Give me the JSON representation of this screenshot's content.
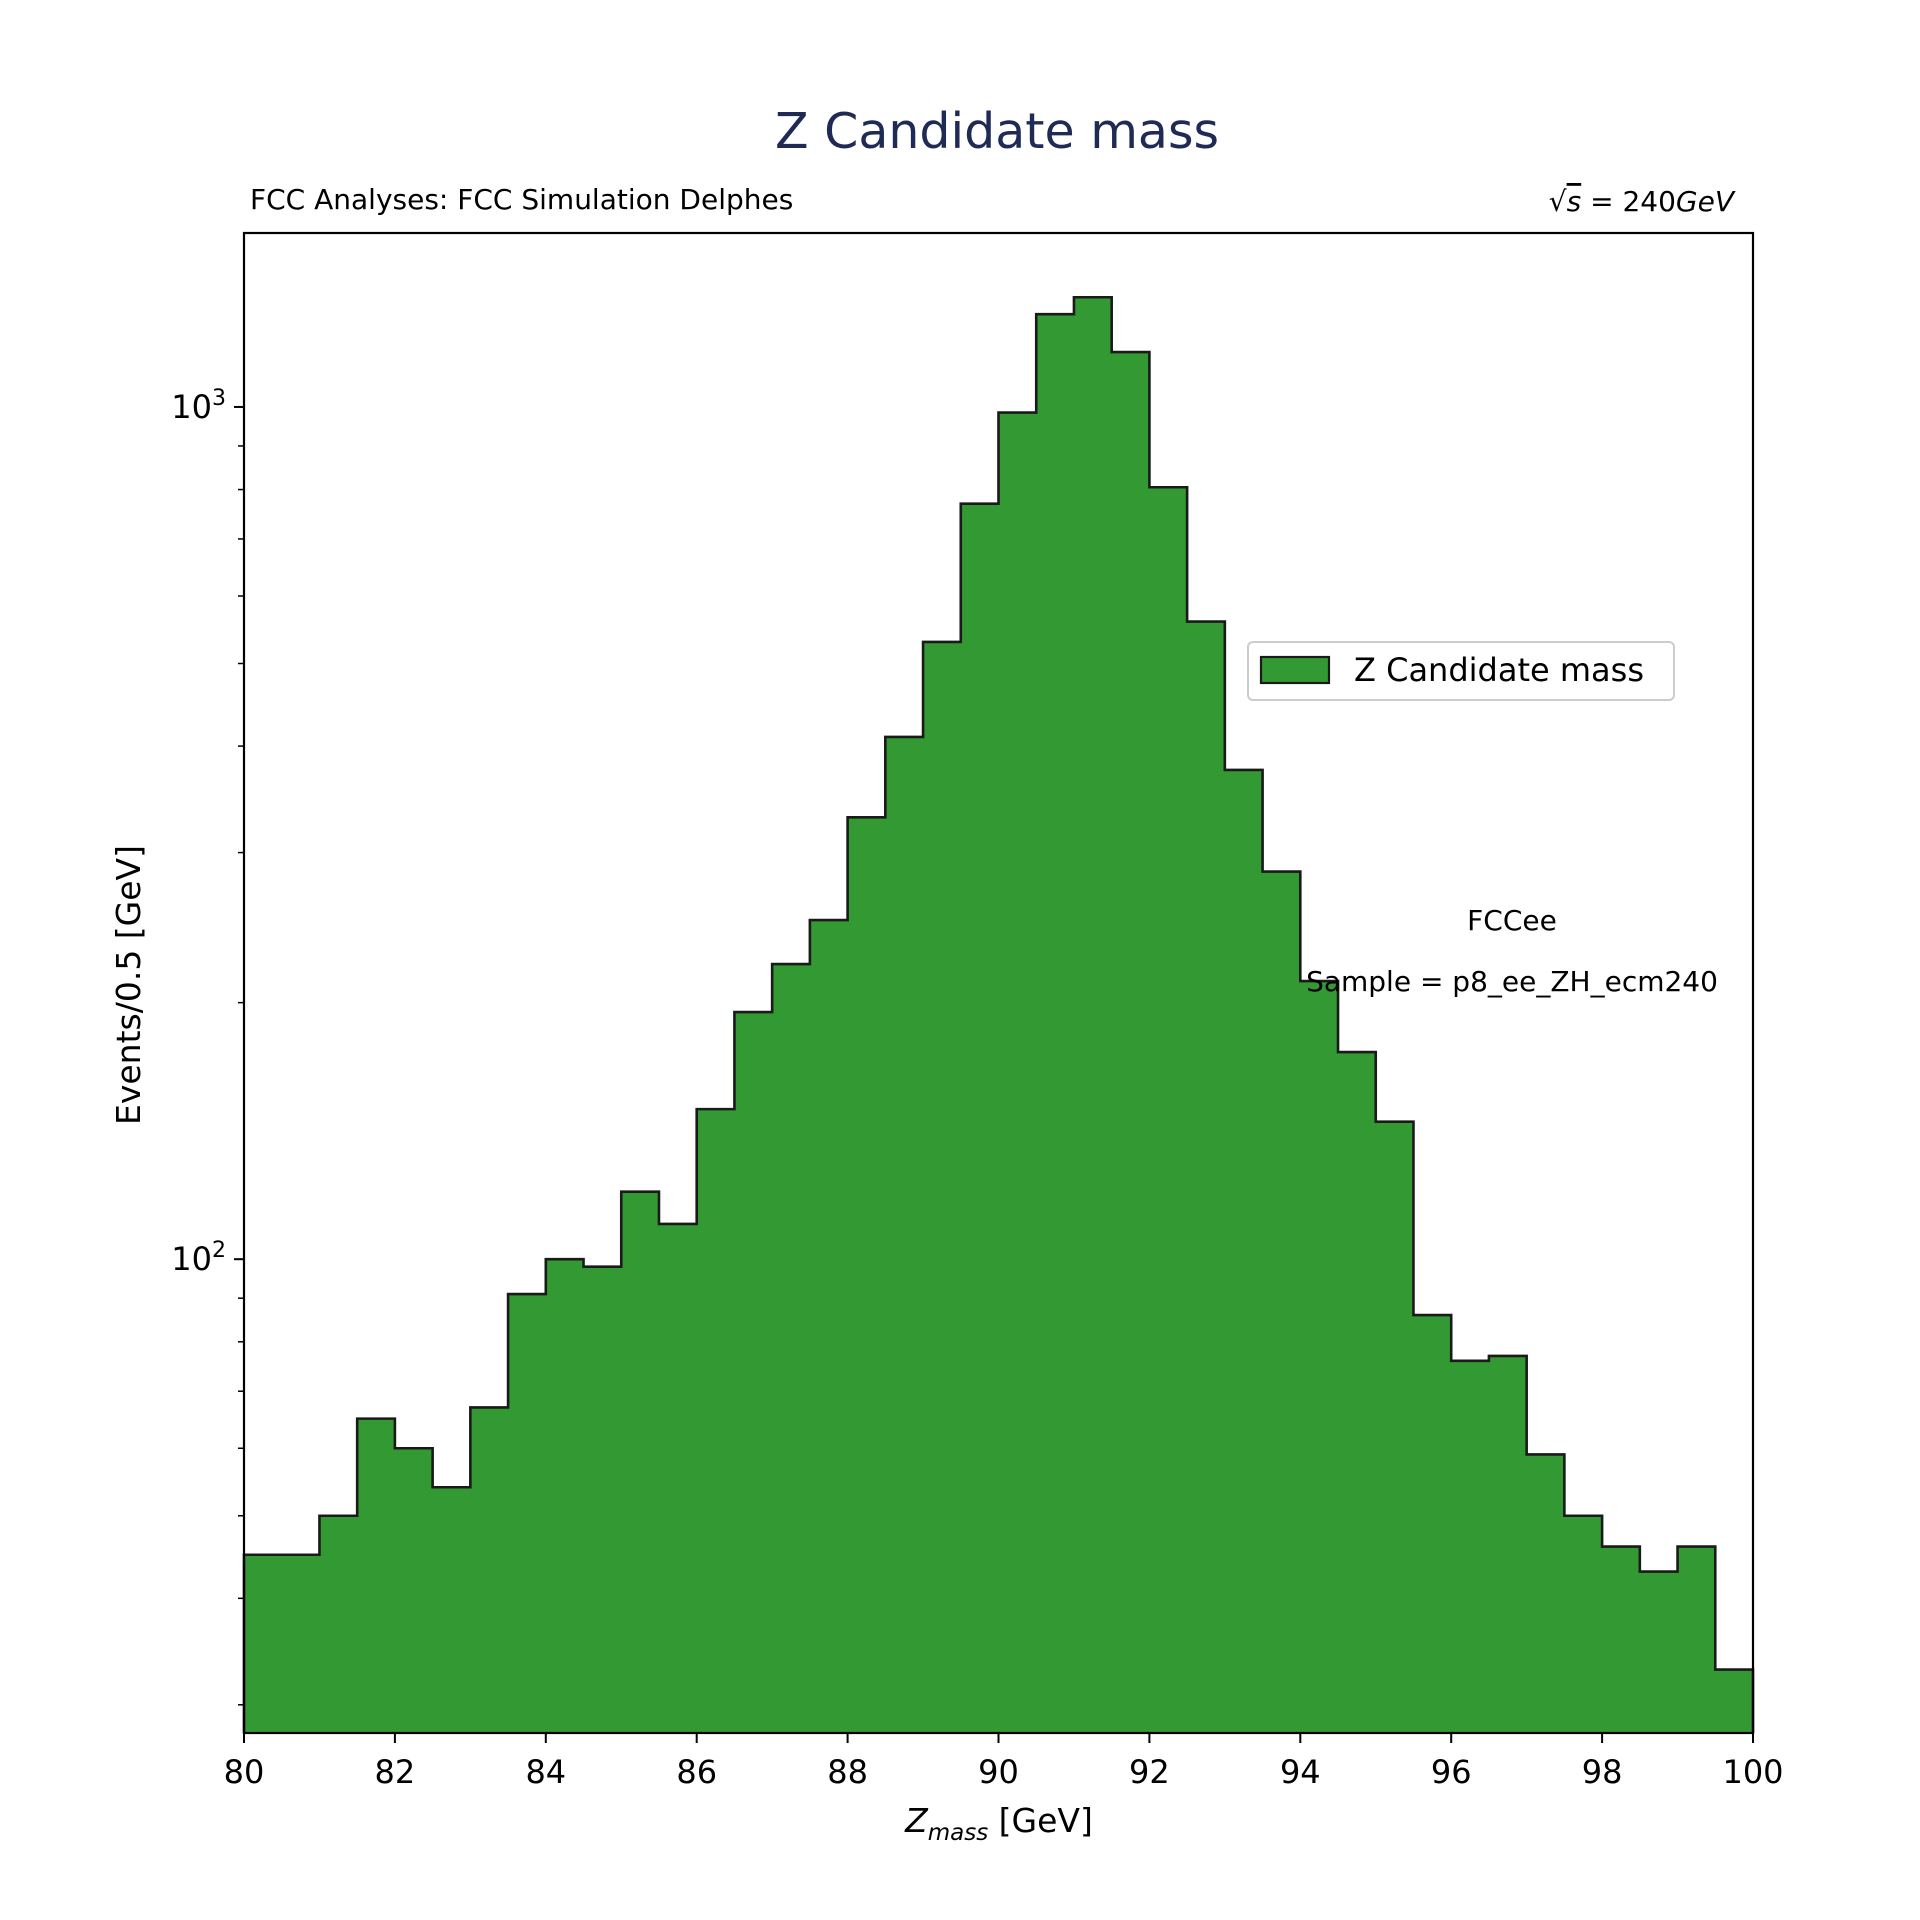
{
  "chart_data": {
    "type": "bar",
    "title": "Z Candidate mass",
    "title_color": "#1f2a55",
    "subtitle_left": "FCC Analyses: FCC Simulation Delphes",
    "subtitle_right": {
      "sqrt": "√",
      "s": "s",
      "rest": " = 240",
      "unit": "GeV"
    },
    "xlabel": {
      "z": "Z",
      "sub": "mass",
      "rest": " [GeV]"
    },
    "ylabel": "Events/0.5 [GeV]",
    "x_scale": "linear",
    "y_scale": "log",
    "xlim": [
      80,
      100
    ],
    "ylim": [
      27.8,
      1600
    ],
    "x_ticks": [
      80,
      82,
      84,
      86,
      88,
      90,
      92,
      94,
      96,
      98,
      100
    ],
    "y_major_ticks": [
      {
        "value": 100,
        "base": "10",
        "exp": "2"
      },
      {
        "value": 1000,
        "base": "10",
        "exp": "3"
      }
    ],
    "bin_edges": [
      80,
      80.5,
      81,
      81.5,
      82,
      82.5,
      83,
      83.5,
      84,
      84.5,
      85,
      85.5,
      86,
      86.5,
      87,
      87.5,
      88,
      88.5,
      89,
      89.5,
      90,
      90.5,
      91,
      91.5,
      92,
      92.5,
      93,
      93.5,
      94,
      94.5,
      95,
      95.5,
      96,
      96.5,
      97,
      97.5,
      98,
      98.5,
      99,
      99.5,
      100
    ],
    "series": [
      {
        "name": "Z Candidate mass",
        "color": "#339933",
        "edge_color": "#1a1a1a",
        "values": [
          45,
          45,
          50,
          65,
          60,
          54,
          67,
          91,
          100,
          98,
          120,
          110,
          150,
          195,
          222,
          250,
          330,
          410,
          530,
          770,
          985,
          1285,
          1345,
          1160,
          805,
          560,
          375,
          285,
          212,
          175,
          145,
          86,
          76,
          77,
          59,
          50,
          46,
          43,
          46,
          33
        ]
      }
    ],
    "legend_position": "center-right",
    "annotations": [
      "FCCee",
      "Sample = p8_ee_ZH_ecm240"
    ],
    "grid": false
  }
}
